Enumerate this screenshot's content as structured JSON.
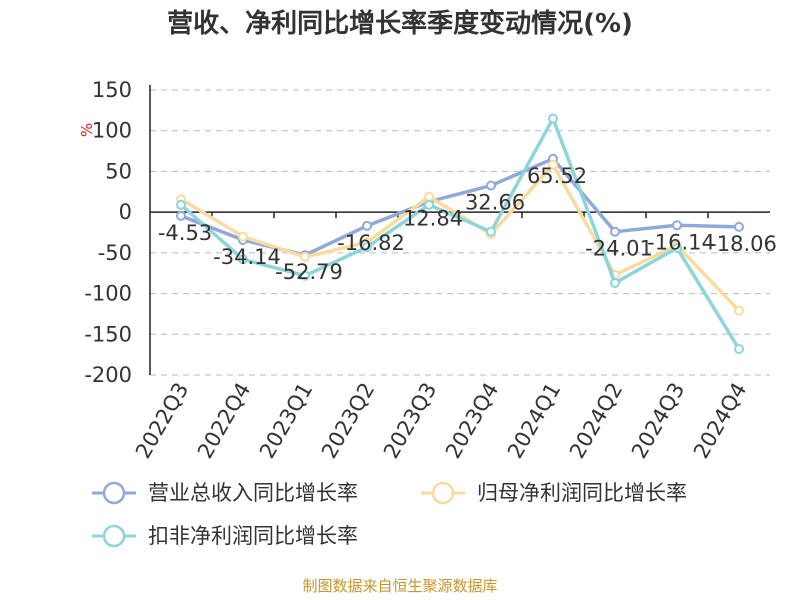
{
  "chart_data": {
    "type": "line",
    "title": "营收、净利同比增长率季度变动情况(%)",
    "ylabel": "%",
    "categories": [
      "2022Q3",
      "2022Q4",
      "2023Q1",
      "2023Q2",
      "2023Q3",
      "2023Q4",
      "2024Q1",
      "2024Q2",
      "2024Q3",
      "2024Q4"
    ],
    "yticks": [
      150,
      100,
      50,
      0,
      -50,
      -100,
      -150,
      -200
    ],
    "ylim": [
      -200,
      150
    ],
    "grid": true,
    "legend_position": "bottom",
    "series": [
      {
        "name": "营业总收入同比增长率",
        "color": "#8fa9d9",
        "values": [
          -4.53,
          -34.14,
          -52.79,
          -16.82,
          12.84,
          32.66,
          65.52,
          -24.01,
          -16.14,
          -18.06
        ],
        "labels": [
          "-4.53",
          "-34.14",
          "-52.79",
          "-16.82",
          "12.84",
          "32.66",
          "65.52",
          "-24.01",
          "-16.14",
          "-18.06"
        ]
      },
      {
        "name": "归母净利润同比增长率",
        "color": "#fadb9f",
        "values": [
          16,
          -30,
          -55,
          -37,
          19,
          -27,
          58,
          -77,
          -41,
          -121
        ]
      },
      {
        "name": "扣非净利润同比增长率",
        "color": "#8dd5d9",
        "values": [
          9,
          -58,
          -78,
          -43,
          9,
          -24,
          115,
          -87,
          -44,
          -168
        ]
      }
    ]
  },
  "footer": {
    "source": "制图数据来自恒生聚源数据库"
  }
}
